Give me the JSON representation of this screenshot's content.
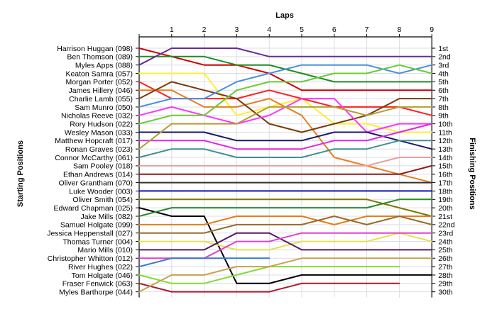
{
  "chart_data": {
    "type": "line",
    "title": "",
    "top_label": "Laps",
    "left_label": "Starting Positions",
    "right_label": "Finishing Positions",
    "laps": [
      0,
      1,
      2,
      3,
      4,
      5,
      6,
      7,
      8,
      9
    ],
    "lap_tick_labels": [
      "1",
      "2",
      "3",
      "4",
      "5",
      "6",
      "7",
      "8",
      "9"
    ],
    "position_count": 30,
    "finishing_labels": [
      "1st",
      "2nd",
      "3rd",
      "4th",
      "5th",
      "6th",
      "7th",
      "8th",
      "9th",
      "10th",
      "11th",
      "12th",
      "13th",
      "14th",
      "15th",
      "16th",
      "17th",
      "18th",
      "19th",
      "20th",
      "21st",
      "22nd",
      "23rd",
      "24th",
      "25th",
      "26th",
      "27th",
      "28th",
      "29th",
      "30th"
    ],
    "grid": true,
    "series": [
      {
        "name": "Harrison Huggan (098)",
        "color": "#cc0000",
        "positions": [
          1,
          2,
          3,
          3,
          4,
          6,
          6,
          6,
          6,
          6
        ]
      },
      {
        "name": "Ben Thomson (089)",
        "color": "#228b22",
        "positions": [
          2,
          2,
          2,
          3,
          3,
          4,
          5,
          5,
          5,
          5
        ]
      },
      {
        "name": "Myles Apps (088)",
        "color": "#6a2c91",
        "positions": [
          3,
          1,
          1,
          1,
          2,
          2,
          2,
          2,
          2,
          2
        ]
      },
      {
        "name": "Keaton Samra (057)",
        "color": "#ffee33",
        "positions": [
          4,
          4,
          4,
          9,
          8,
          7,
          10,
          10,
          11,
          11
        ]
      },
      {
        "name": "Morgan Porter (052)",
        "color": "#ff2020",
        "positions": [
          5,
          7,
          7,
          7,
          6,
          7,
          8,
          8,
          8,
          9
        ]
      },
      {
        "name": "James Hillery (046)",
        "color": "#e87e20",
        "positions": [
          6,
          6,
          8,
          8,
          7,
          9,
          14,
          15,
          16,
          17
        ]
      },
      {
        "name": "Charlie Lamb (055)",
        "color": "#7a3b0a",
        "positions": [
          7,
          5,
          6,
          7,
          10,
          11,
          10,
          9,
          7,
          7
        ]
      },
      {
        "name": "Sam Munro (050)",
        "color": "#4a90d9",
        "positions": [
          8,
          7,
          7,
          5,
          4,
          3,
          3,
          3,
          4,
          3
        ]
      },
      {
        "name": "Nicholas Reeve (032)",
        "color": "#ff33ff",
        "positions": [
          9,
          8,
          9,
          10,
          9,
          7,
          7,
          11,
          10,
          10
        ]
      },
      {
        "name": "Rory Hudson (022)",
        "color": "#66cc33",
        "positions": [
          10,
          9,
          9,
          6,
          5,
          5,
          4,
          4,
          3,
          4
        ]
      },
      {
        "name": "Wesley Mason (033)",
        "color": "#1a1a66",
        "positions": [
          11,
          11,
          11,
          12,
          12,
          12,
          11,
          11,
          12,
          13
        ]
      },
      {
        "name": "Matthew Hopcraft (017)",
        "color": "#e024e0",
        "positions": [
          12,
          12,
          12,
          13,
          13,
          13,
          12,
          12,
          11,
          10
        ]
      },
      {
        "name": "Ronan Graves (023)",
        "color": "#b0a030",
        "positions": [
          13,
          10,
          10,
          10,
          8,
          8,
          8,
          9,
          8,
          8
        ]
      },
      {
        "name": "Connor McCarthy (061)",
        "color": "#409090",
        "positions": [
          14,
          13,
          13,
          14,
          14,
          14,
          13,
          13,
          12,
          12
        ]
      },
      {
        "name": "Sam Pooley (018)",
        "color": "#e8a0a0",
        "positions": [
          15,
          15,
          15,
          15,
          15,
          15,
          15,
          15,
          14,
          14
        ]
      },
      {
        "name": "Ethan Andrews (014)",
        "color": "#8b1a1a",
        "positions": [
          16,
          16,
          16,
          16,
          16,
          16,
          16,
          16,
          16,
          15
        ]
      },
      {
        "name": "Oliver Grantham (070)",
        "color": "#333333",
        "positions": [
          17,
          17,
          17,
          17,
          17,
          17,
          17,
          17,
          17,
          17
        ]
      },
      {
        "name": "Luke Wooder (003)",
        "color": "#1010bb",
        "positions": [
          18,
          18,
          18,
          18,
          18,
          18,
          18,
          18,
          18,
          18
        ]
      },
      {
        "name": "Oliver Smith (054)",
        "color": "#7a7a00",
        "positions": [
          19,
          19,
          19,
          19,
          19,
          19,
          19,
          19,
          20,
          21
        ]
      },
      {
        "name": "Edward Chapman (025)",
        "color": "#000000",
        "positions": [
          20,
          21,
          21,
          29,
          29,
          28,
          28,
          28,
          28,
          28
        ]
      },
      {
        "name": "Jake Mills (082)",
        "color": "#2a8a2a",
        "positions": [
          21,
          20,
          20,
          20,
          20,
          20,
          20,
          20,
          19,
          19
        ]
      },
      {
        "name": "Samuel Holgate (099)",
        "color": "#e0801a",
        "positions": [
          22,
          22,
          22,
          21,
          21,
          21,
          22,
          21,
          21,
          21
        ]
      },
      {
        "name": "Jessica Heppenstall (027)",
        "color": "#9a6a2a",
        "positions": [
          23,
          23,
          23,
          22,
          22,
          22,
          21,
          22,
          21,
          22
        ]
      },
      {
        "name": "Thomas Turner (004)",
        "color": "#e8e050",
        "positions": [
          24,
          24,
          24,
          25,
          25,
          24,
          24,
          24,
          23,
          24
        ]
      },
      {
        "name": "Mario Mills (010)",
        "color": "#551a66",
        "positions": [
          25,
          25,
          25,
          23,
          23,
          25,
          25,
          25,
          25,
          25
        ]
      },
      {
        "name": "Christopher Whitton (012)",
        "color": "#e040d0",
        "positions": [
          26,
          26,
          26,
          24,
          24,
          23,
          23,
          23,
          23,
          23
        ]
      },
      {
        "name": "River Hughes (022)",
        "color": "#3a7ad0",
        "positions": [
          27,
          26,
          26,
          26,
          26
        ]
      },
      {
        "name": "Tom Holgate (046)",
        "color": "#80dd30",
        "positions": [
          28,
          29,
          29,
          28,
          27,
          27,
          27,
          27,
          27
        ]
      },
      {
        "name": "Fraser Fenwick (063)",
        "color": "#aa1a2a",
        "positions": [
          29,
          30,
          30,
          30,
          30,
          29,
          29,
          29,
          29
        ]
      },
      {
        "name": "Myles Barthorpe (044)",
        "color": "#c8a050",
        "positions": [
          30,
          28,
          28,
          27,
          27,
          26,
          26,
          26,
          26,
          26
        ]
      }
    ]
  }
}
